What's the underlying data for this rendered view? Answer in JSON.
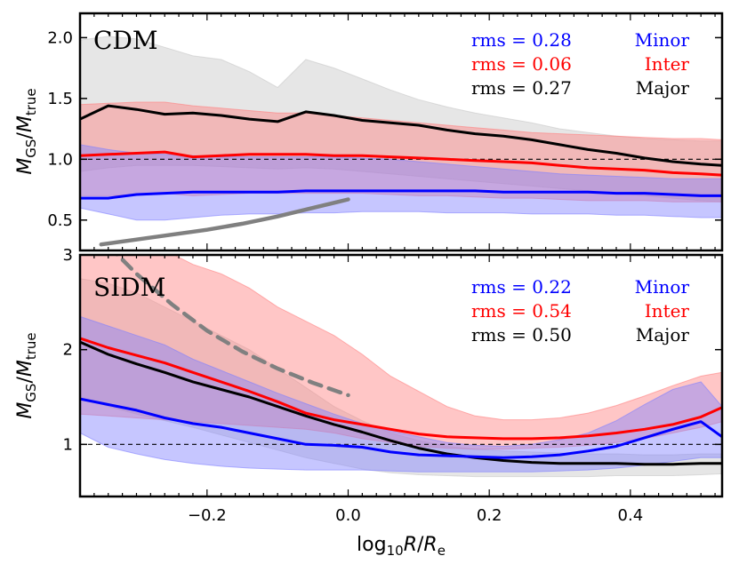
{
  "chart_data": [
    {
      "type": "line",
      "panel": "top",
      "title": "CDM",
      "ylabel": "M_GS/M_true",
      "ylabel_main": "M",
      "ylabel_sub": "GS",
      "ylabel_slash": "/",
      "ylabel_main2": "M",
      "ylabel_sub2": "true",
      "xlim": [
        -0.38,
        0.53
      ],
      "ylim": [
        0.25,
        2.2
      ],
      "yticks": [
        0.5,
        1.0,
        1.5,
        2.0
      ],
      "ytick_labels": [
        "0.5",
        "1.0",
        "1.5",
        "2.0"
      ],
      "reference_line": 1.0,
      "legend": [
        {
          "rms": "rms = 0.28",
          "name": "Minor",
          "color": "#0000ff"
        },
        {
          "rms": "rms = 0.06",
          "name": "Inter",
          "color": "#ff0000"
        },
        {
          "rms": "rms = 0.27",
          "name": "Major",
          "color": "#000000"
        }
      ],
      "x": [
        -0.38,
        -0.34,
        -0.3,
        -0.26,
        -0.22,
        -0.18,
        -0.14,
        -0.1,
        -0.06,
        -0.02,
        0.02,
        0.06,
        0.1,
        0.14,
        0.18,
        0.22,
        0.26,
        0.3,
        0.34,
        0.38,
        0.42,
        0.46,
        0.5,
        0.53
      ],
      "series": [
        {
          "name": "Major",
          "color": "#000000",
          "band_color": "#c8c8c8",
          "values": [
            1.33,
            1.44,
            1.41,
            1.37,
            1.38,
            1.36,
            1.33,
            1.31,
            1.39,
            1.36,
            1.32,
            1.3,
            1.28,
            1.24,
            1.21,
            1.19,
            1.16,
            1.12,
            1.08,
            1.05,
            1.01,
            0.98,
            0.96,
            0.95
          ],
          "upper": [
            1.98,
            2.01,
            1.99,
            1.92,
            1.85,
            1.82,
            1.72,
            1.59,
            1.82,
            1.75,
            1.66,
            1.57,
            1.49,
            1.43,
            1.38,
            1.34,
            1.3,
            1.25,
            1.22,
            1.19,
            1.17,
            1.16,
            1.15,
            1.15
          ],
          "lower": [
            0.9,
            0.93,
            0.95,
            0.95,
            0.95,
            0.94,
            0.93,
            0.92,
            0.93,
            0.92,
            0.9,
            0.88,
            0.86,
            0.84,
            0.82,
            0.8,
            0.78,
            0.76,
            0.74,
            0.72,
            0.7,
            0.68,
            0.66,
            0.65
          ]
        },
        {
          "name": "Inter",
          "color": "#ff0000",
          "band_color": "#ff8080",
          "values": [
            1.03,
            1.04,
            1.05,
            1.06,
            1.02,
            1.03,
            1.04,
            1.04,
            1.04,
            1.03,
            1.03,
            1.02,
            1.01,
            1.0,
            0.99,
            0.98,
            0.97,
            0.95,
            0.93,
            0.92,
            0.91,
            0.89,
            0.88,
            0.87
          ],
          "upper": [
            1.45,
            1.46,
            1.47,
            1.47,
            1.44,
            1.42,
            1.4,
            1.38,
            1.38,
            1.36,
            1.34,
            1.32,
            1.3,
            1.28,
            1.26,
            1.24,
            1.22,
            1.21,
            1.2,
            1.19,
            1.18,
            1.17,
            1.17,
            1.16
          ],
          "lower": [
            0.7,
            0.7,
            0.71,
            0.72,
            0.7,
            0.71,
            0.72,
            0.72,
            0.72,
            0.72,
            0.72,
            0.71,
            0.7,
            0.7,
            0.69,
            0.68,
            0.68,
            0.67,
            0.66,
            0.66,
            0.66,
            0.65,
            0.65,
            0.65
          ]
        },
        {
          "name": "Minor",
          "color": "#0000ff",
          "band_color": "#8080ff",
          "values": [
            0.68,
            0.68,
            0.71,
            0.72,
            0.73,
            0.73,
            0.73,
            0.73,
            0.74,
            0.74,
            0.74,
            0.74,
            0.74,
            0.74,
            0.74,
            0.73,
            0.73,
            0.73,
            0.73,
            0.72,
            0.72,
            0.71,
            0.7,
            0.7
          ],
          "upper": [
            1.12,
            1.08,
            1.05,
            1.04,
            1.03,
            1.02,
            1.02,
            1.02,
            1.02,
            1.02,
            1.01,
            1.0,
            0.98,
            0.96,
            0.94,
            0.92,
            0.9,
            0.88,
            0.87,
            0.86,
            0.85,
            0.84,
            0.84,
            0.84
          ],
          "lower": [
            0.6,
            0.55,
            0.5,
            0.5,
            0.52,
            0.54,
            0.55,
            0.55,
            0.56,
            0.56,
            0.57,
            0.57,
            0.57,
            0.56,
            0.56,
            0.56,
            0.55,
            0.55,
            0.55,
            0.54,
            0.54,
            0.53,
            0.52,
            0.52
          ]
        }
      ],
      "guide_curve": {
        "style": "solid",
        "color": "#808080",
        "x": [
          -0.35,
          -0.3,
          -0.25,
          -0.2,
          -0.15,
          -0.1,
          -0.05,
          0.0
        ],
        "y": [
          0.3,
          0.34,
          0.38,
          0.42,
          0.47,
          0.53,
          0.6,
          0.67
        ]
      }
    },
    {
      "type": "line",
      "panel": "bottom",
      "title": "SIDM",
      "ylabel": "M_GS/M_true",
      "ylabel_main": "M",
      "ylabel_sub": "GS",
      "ylabel_slash": "/",
      "ylabel_main2": "M",
      "ylabel_sub2": "true",
      "xlabel": "log10 R/Re",
      "xlabel_log": "log",
      "xlabel_sub10": "10",
      "xlabel_R": "R",
      "xlabel_slash": "/",
      "xlabel_R2": "R",
      "xlabel_sube": "e",
      "xlim": [
        -0.38,
        0.53
      ],
      "ylim": [
        0.45,
        3.0
      ],
      "yticks": [
        1,
        2,
        3
      ],
      "ytick_labels": [
        "1",
        "2",
        "3"
      ],
      "xticks": [
        -0.2,
        0.0,
        0.2,
        0.4
      ],
      "xtick_labels": [
        "−0.2",
        "0.0",
        "0.2",
        "0.4"
      ],
      "reference_line": 1.0,
      "legend": [
        {
          "rms": "rms = 0.22",
          "name": "Minor",
          "color": "#0000ff"
        },
        {
          "rms": "rms = 0.54",
          "name": "Inter",
          "color": "#ff0000"
        },
        {
          "rms": "rms = 0.50",
          "name": "Major",
          "color": "#000000"
        }
      ],
      "x": [
        -0.38,
        -0.34,
        -0.3,
        -0.26,
        -0.22,
        -0.18,
        -0.14,
        -0.1,
        -0.06,
        -0.02,
        0.02,
        0.06,
        0.1,
        0.14,
        0.18,
        0.22,
        0.26,
        0.3,
        0.34,
        0.38,
        0.42,
        0.46,
        0.5,
        0.53
      ],
      "series": [
        {
          "name": "Major",
          "color": "#000000",
          "band_color": "#c8c8c8",
          "values": [
            2.08,
            1.95,
            1.85,
            1.76,
            1.66,
            1.58,
            1.5,
            1.4,
            1.3,
            1.21,
            1.13,
            1.04,
            0.96,
            0.9,
            0.86,
            0.83,
            0.81,
            0.8,
            0.8,
            0.8,
            0.79,
            0.79,
            0.8,
            0.8
          ],
          "upper": [
            2.75,
            2.7,
            2.6,
            2.45,
            2.3,
            2.15,
            2.0,
            1.8,
            1.6,
            1.4,
            1.25,
            1.12,
            1.04,
            0.98,
            0.95,
            0.93,
            0.92,
            0.91,
            0.9,
            0.9,
            0.89,
            0.89,
            0.9,
            0.9
          ],
          "lower": [
            1.5,
            1.4,
            1.32,
            1.25,
            1.18,
            1.1,
            1.02,
            0.94,
            0.86,
            0.8,
            0.74,
            0.7,
            0.68,
            0.67,
            0.66,
            0.66,
            0.66,
            0.66,
            0.66,
            0.67,
            0.67,
            0.67,
            0.68,
            0.69
          ]
        },
        {
          "name": "Inter",
          "color": "#ff0000",
          "band_color": "#ff8080",
          "values": [
            2.12,
            2.02,
            1.94,
            1.86,
            1.76,
            1.66,
            1.56,
            1.45,
            1.33,
            1.26,
            1.21,
            1.16,
            1.11,
            1.08,
            1.07,
            1.06,
            1.06,
            1.07,
            1.09,
            1.12,
            1.16,
            1.21,
            1.29,
            1.39
          ],
          "upper": [
            3.1,
            3.1,
            3.1,
            3.05,
            2.9,
            2.8,
            2.65,
            2.45,
            2.3,
            2.15,
            1.95,
            1.72,
            1.56,
            1.4,
            1.3,
            1.26,
            1.26,
            1.28,
            1.33,
            1.41,
            1.51,
            1.62,
            1.72,
            1.76
          ],
          "lower": [
            1.32,
            1.3,
            1.28,
            1.26,
            1.24,
            1.22,
            1.2,
            1.18,
            1.16,
            1.12,
            1.06,
            1.02,
            0.98,
            0.96,
            0.95,
            0.95,
            0.96,
            0.97,
            0.99,
            1.02,
            1.06,
            1.12,
            1.18,
            1.24
          ]
        },
        {
          "name": "Minor",
          "color": "#0000ff",
          "band_color": "#8080ff",
          "values": [
            1.48,
            1.42,
            1.36,
            1.28,
            1.22,
            1.18,
            1.12,
            1.06,
            1.0,
            0.99,
            0.97,
            0.92,
            0.89,
            0.88,
            0.87,
            0.86,
            0.87,
            0.89,
            0.93,
            0.98,
            1.07,
            1.16,
            1.24,
            1.08
          ],
          "upper": [
            2.35,
            2.25,
            2.15,
            2.05,
            1.9,
            1.78,
            1.66,
            1.54,
            1.43,
            1.32,
            1.22,
            1.14,
            1.08,
            1.02,
            0.99,
            0.98,
            1.0,
            1.05,
            1.12,
            1.25,
            1.42,
            1.58,
            1.66,
            1.4
          ],
          "lower": [
            1.12,
            0.97,
            0.9,
            0.84,
            0.8,
            0.77,
            0.75,
            0.74,
            0.73,
            0.73,
            0.73,
            0.72,
            0.71,
            0.71,
            0.71,
            0.71,
            0.71,
            0.72,
            0.73,
            0.75,
            0.78,
            0.82,
            0.86,
            0.86
          ]
        }
      ],
      "guide_curve": {
        "style": "dashed",
        "color": "#808080",
        "x": [
          -0.34,
          -0.3,
          -0.25,
          -0.2,
          -0.15,
          -0.1,
          -0.05,
          0.0
        ],
        "y": [
          3.1,
          2.8,
          2.48,
          2.2,
          1.98,
          1.8,
          1.65,
          1.52
        ]
      }
    }
  ]
}
